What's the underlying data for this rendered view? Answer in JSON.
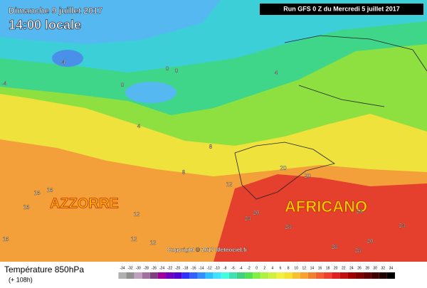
{
  "header": {
    "date": "Dimanche 9 juillet 2017",
    "time": "14:00 locale",
    "run": "Run GFS 0 Z du Mercredi 5 juillet 2017"
  },
  "map": {
    "regions": [
      "AZZORRE",
      "AFRICANO"
    ],
    "contour_labels": [
      -4,
      0,
      0,
      0,
      -4,
      4,
      4,
      8,
      8,
      12,
      12,
      12,
      16,
      16,
      16,
      16,
      20,
      20,
      20,
      24,
      24,
      24,
      28,
      28,
      28,
      20,
      12
    ],
    "copyright": "Copyright © 2017 Meteociel.fr"
  },
  "legend": {
    "title": "Température 850hPa",
    "subtitle": "(+ 108h)",
    "scale": [
      -34,
      -32,
      -30,
      -28,
      -26,
      -24,
      -22,
      -20,
      -18,
      -16,
      -14,
      -12,
      -10,
      -8,
      -6,
      -4,
      -2,
      0,
      2,
      4,
      6,
      8,
      10,
      12,
      14,
      16,
      18,
      20,
      22,
      24,
      26,
      28,
      30,
      32,
      34
    ],
    "colors": [
      "#b0b0b0",
      "#909090",
      "#c0a0c0",
      "#a070a0",
      "#804080",
      "#a000a0",
      "#7000c0",
      "#5000d0",
      "#3030ff",
      "#3060ff",
      "#3090ff",
      "#30c0ff",
      "#40e0ff",
      "#40ffe0",
      "#40e0b0",
      "#40d080",
      "#50e050",
      "#80f040",
      "#b0f040",
      "#d0f040",
      "#f0f040",
      "#f8e030",
      "#f8c030",
      "#f8a030",
      "#f08030",
      "#f06030",
      "#f04030",
      "#e02020",
      "#c01010",
      "#a00000",
      "#800000",
      "#600000",
      "#400000",
      "#200000",
      "#000000"
    ]
  }
}
